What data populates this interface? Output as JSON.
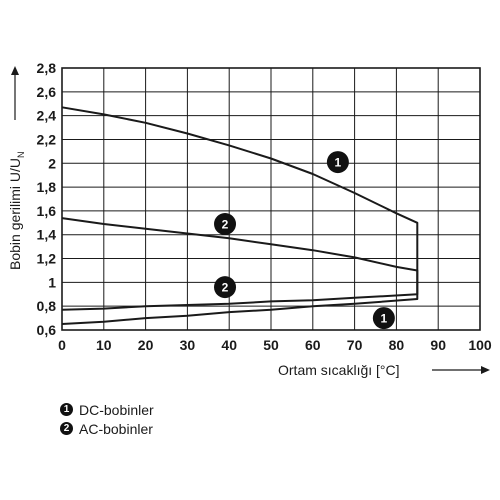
{
  "chart_data": {
    "type": "line",
    "xlabel": "Ortam sıcaklığı [°C]",
    "ylabel_main": "Bobin gerilimi U/U",
    "ylabel_sub": "N",
    "xlim": [
      0,
      100
    ],
    "ylim": [
      0.6,
      2.8
    ],
    "x_ticks": [
      "0",
      "10",
      "20",
      "30",
      "40",
      "50",
      "60",
      "70",
      "80",
      "90",
      "100"
    ],
    "y_ticks": [
      "0,6",
      "0,8",
      "1",
      "1,2",
      "1,4",
      "1,6",
      "1,8",
      "2",
      "2,2",
      "2,4",
      "2,6",
      "2,8"
    ],
    "grid": true,
    "series": [
      {
        "marker": "1",
        "points": [
          [
            0,
            2.47
          ],
          [
            10,
            2.41
          ],
          [
            20,
            2.34
          ],
          [
            30,
            2.25
          ],
          [
            40,
            2.15
          ],
          [
            50,
            2.04
          ],
          [
            60,
            1.91
          ],
          [
            70,
            1.75
          ],
          [
            80,
            1.58
          ],
          [
            85,
            1.5
          ],
          [
            85,
            0.86
          ],
          [
            70,
            0.82
          ],
          [
            60,
            0.8
          ],
          [
            50,
            0.77
          ],
          [
            40,
            0.75
          ],
          [
            30,
            0.72
          ],
          [
            20,
            0.7
          ],
          [
            10,
            0.67
          ],
          [
            0,
            0.65
          ]
        ],
        "label_at": [
          66,
          2.01
        ]
      },
      {
        "marker": "2",
        "points": [
          [
            0,
            1.54
          ],
          [
            10,
            1.49
          ],
          [
            20,
            1.45
          ],
          [
            30,
            1.41
          ],
          [
            40,
            1.37
          ],
          [
            50,
            1.32
          ],
          [
            60,
            1.27
          ],
          [
            70,
            1.21
          ],
          [
            80,
            1.13
          ],
          [
            85,
            1.1
          ],
          [
            85,
            0.9
          ],
          [
            70,
            0.87
          ],
          [
            60,
            0.85
          ],
          [
            50,
            0.84
          ],
          [
            40,
            0.82
          ],
          [
            30,
            0.81
          ],
          [
            20,
            0.8
          ],
          [
            10,
            0.78
          ],
          [
            0,
            0.77
          ]
        ],
        "label_at": [
          39,
          1.49
        ]
      }
    ],
    "extra_markers": [
      {
        "marker": "2",
        "at": [
          39,
          0.96
        ]
      },
      {
        "marker": "1",
        "at": [
          77,
          0.7
        ]
      }
    ]
  },
  "legend": [
    {
      "marker": "1",
      "label": "DC-bobinler"
    },
    {
      "marker": "2",
      "label": "AC-bobinler"
    }
  ]
}
